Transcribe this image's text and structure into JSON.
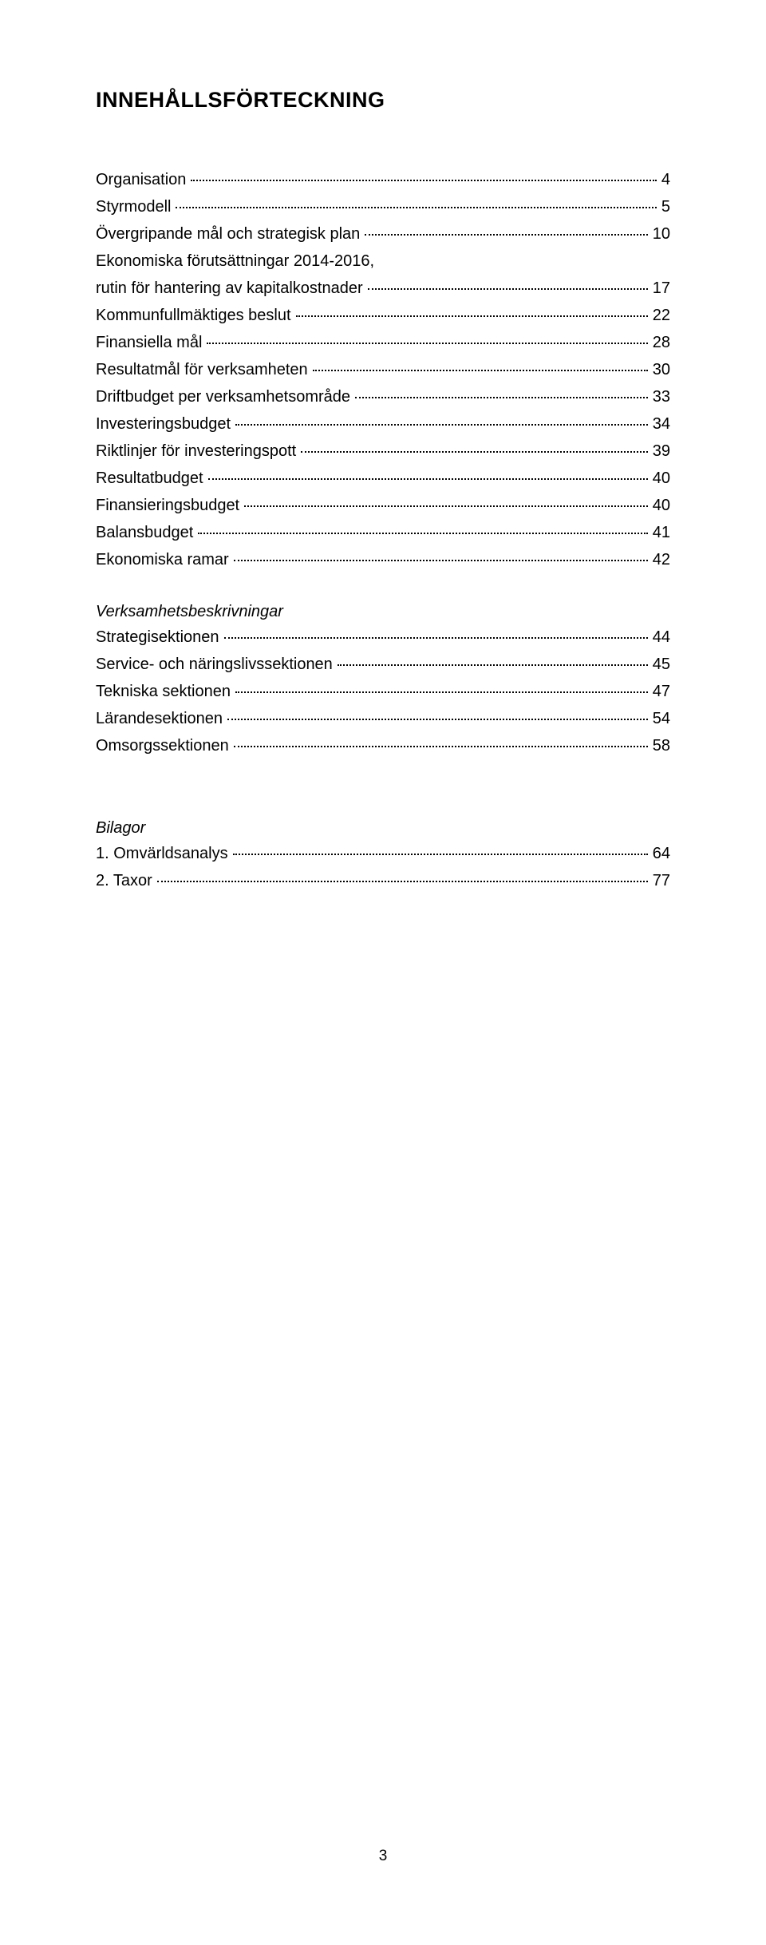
{
  "title": "INNEHÅLLSFÖRTECKNING",
  "main_entries": [
    {
      "label": "Organisation",
      "page": "4"
    },
    {
      "label": "Styrmodell",
      "page": "5"
    },
    {
      "label": "Övergripande mål och strategisk plan",
      "page": "10"
    },
    {
      "label": "Ekonomiska förutsättningar 2014-2016,",
      "page": ""
    },
    {
      "label": "rutin för hantering av kapitalkostnader",
      "page": "17"
    },
    {
      "label": "Kommunfullmäktiges beslut",
      "page": "22"
    },
    {
      "label": "Finansiella mål",
      "page": "28"
    },
    {
      "label": "Resultatmål för verksamheten",
      "page": "30"
    },
    {
      "label": "Driftbudget per verksamhetsområde",
      "page": "33"
    },
    {
      "label": "Investeringsbudget",
      "page": "34"
    },
    {
      "label": "Riktlinjer för investeringspott",
      "page": "39"
    },
    {
      "label": "Resultatbudget",
      "page": "40"
    },
    {
      "label": "Finansieringsbudget",
      "page": "40"
    },
    {
      "label": "Balansbudget",
      "page": "41"
    },
    {
      "label": "Ekonomiska ramar",
      "page": "42"
    }
  ],
  "section_verks": {
    "heading": "Verksamhetsbeskrivningar",
    "entries": [
      {
        "label": "Strategisektionen",
        "page": "44"
      },
      {
        "label": "Service- och näringslivssektionen",
        "page": "45"
      },
      {
        "label": "Tekniska sektionen",
        "page": "47"
      },
      {
        "label": "Lärandesektionen",
        "page": "54"
      },
      {
        "label": "Omsorgssektionen",
        "page": "58"
      }
    ]
  },
  "section_bilagor": {
    "heading": "Bilagor",
    "entries": [
      {
        "label": "1.  Omvärldsanalys",
        "page": "64"
      },
      {
        "label": "2.  Taxor",
        "page": "77"
      }
    ]
  },
  "page_number": "3"
}
